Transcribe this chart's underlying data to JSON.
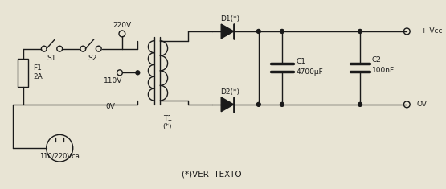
{
  "bg_color": "#e8e4d4",
  "line_color": "#1a1a1a",
  "text_color": "#1a1a1a",
  "figsize": [
    5.55,
    2.35
  ],
  "dpi": 100,
  "labels": {
    "vcc_top": "+ Vcc",
    "v220": "220V",
    "s1": "S1",
    "s2": "S2",
    "f1": "F1",
    "f1_val": "2A",
    "v110": "110V",
    "v0": "0V",
    "t1": "T1",
    "t1_star": "(*)",
    "d1": "D1(*)",
    "d2": "D2(*)",
    "c1": "C1",
    "c1_val": "4700μF",
    "c2": "C2",
    "c2_val": "100nF",
    "input_label": "110/220Vca",
    "footer": "(*)VER  TEXTO",
    "ov_right": "OV"
  }
}
